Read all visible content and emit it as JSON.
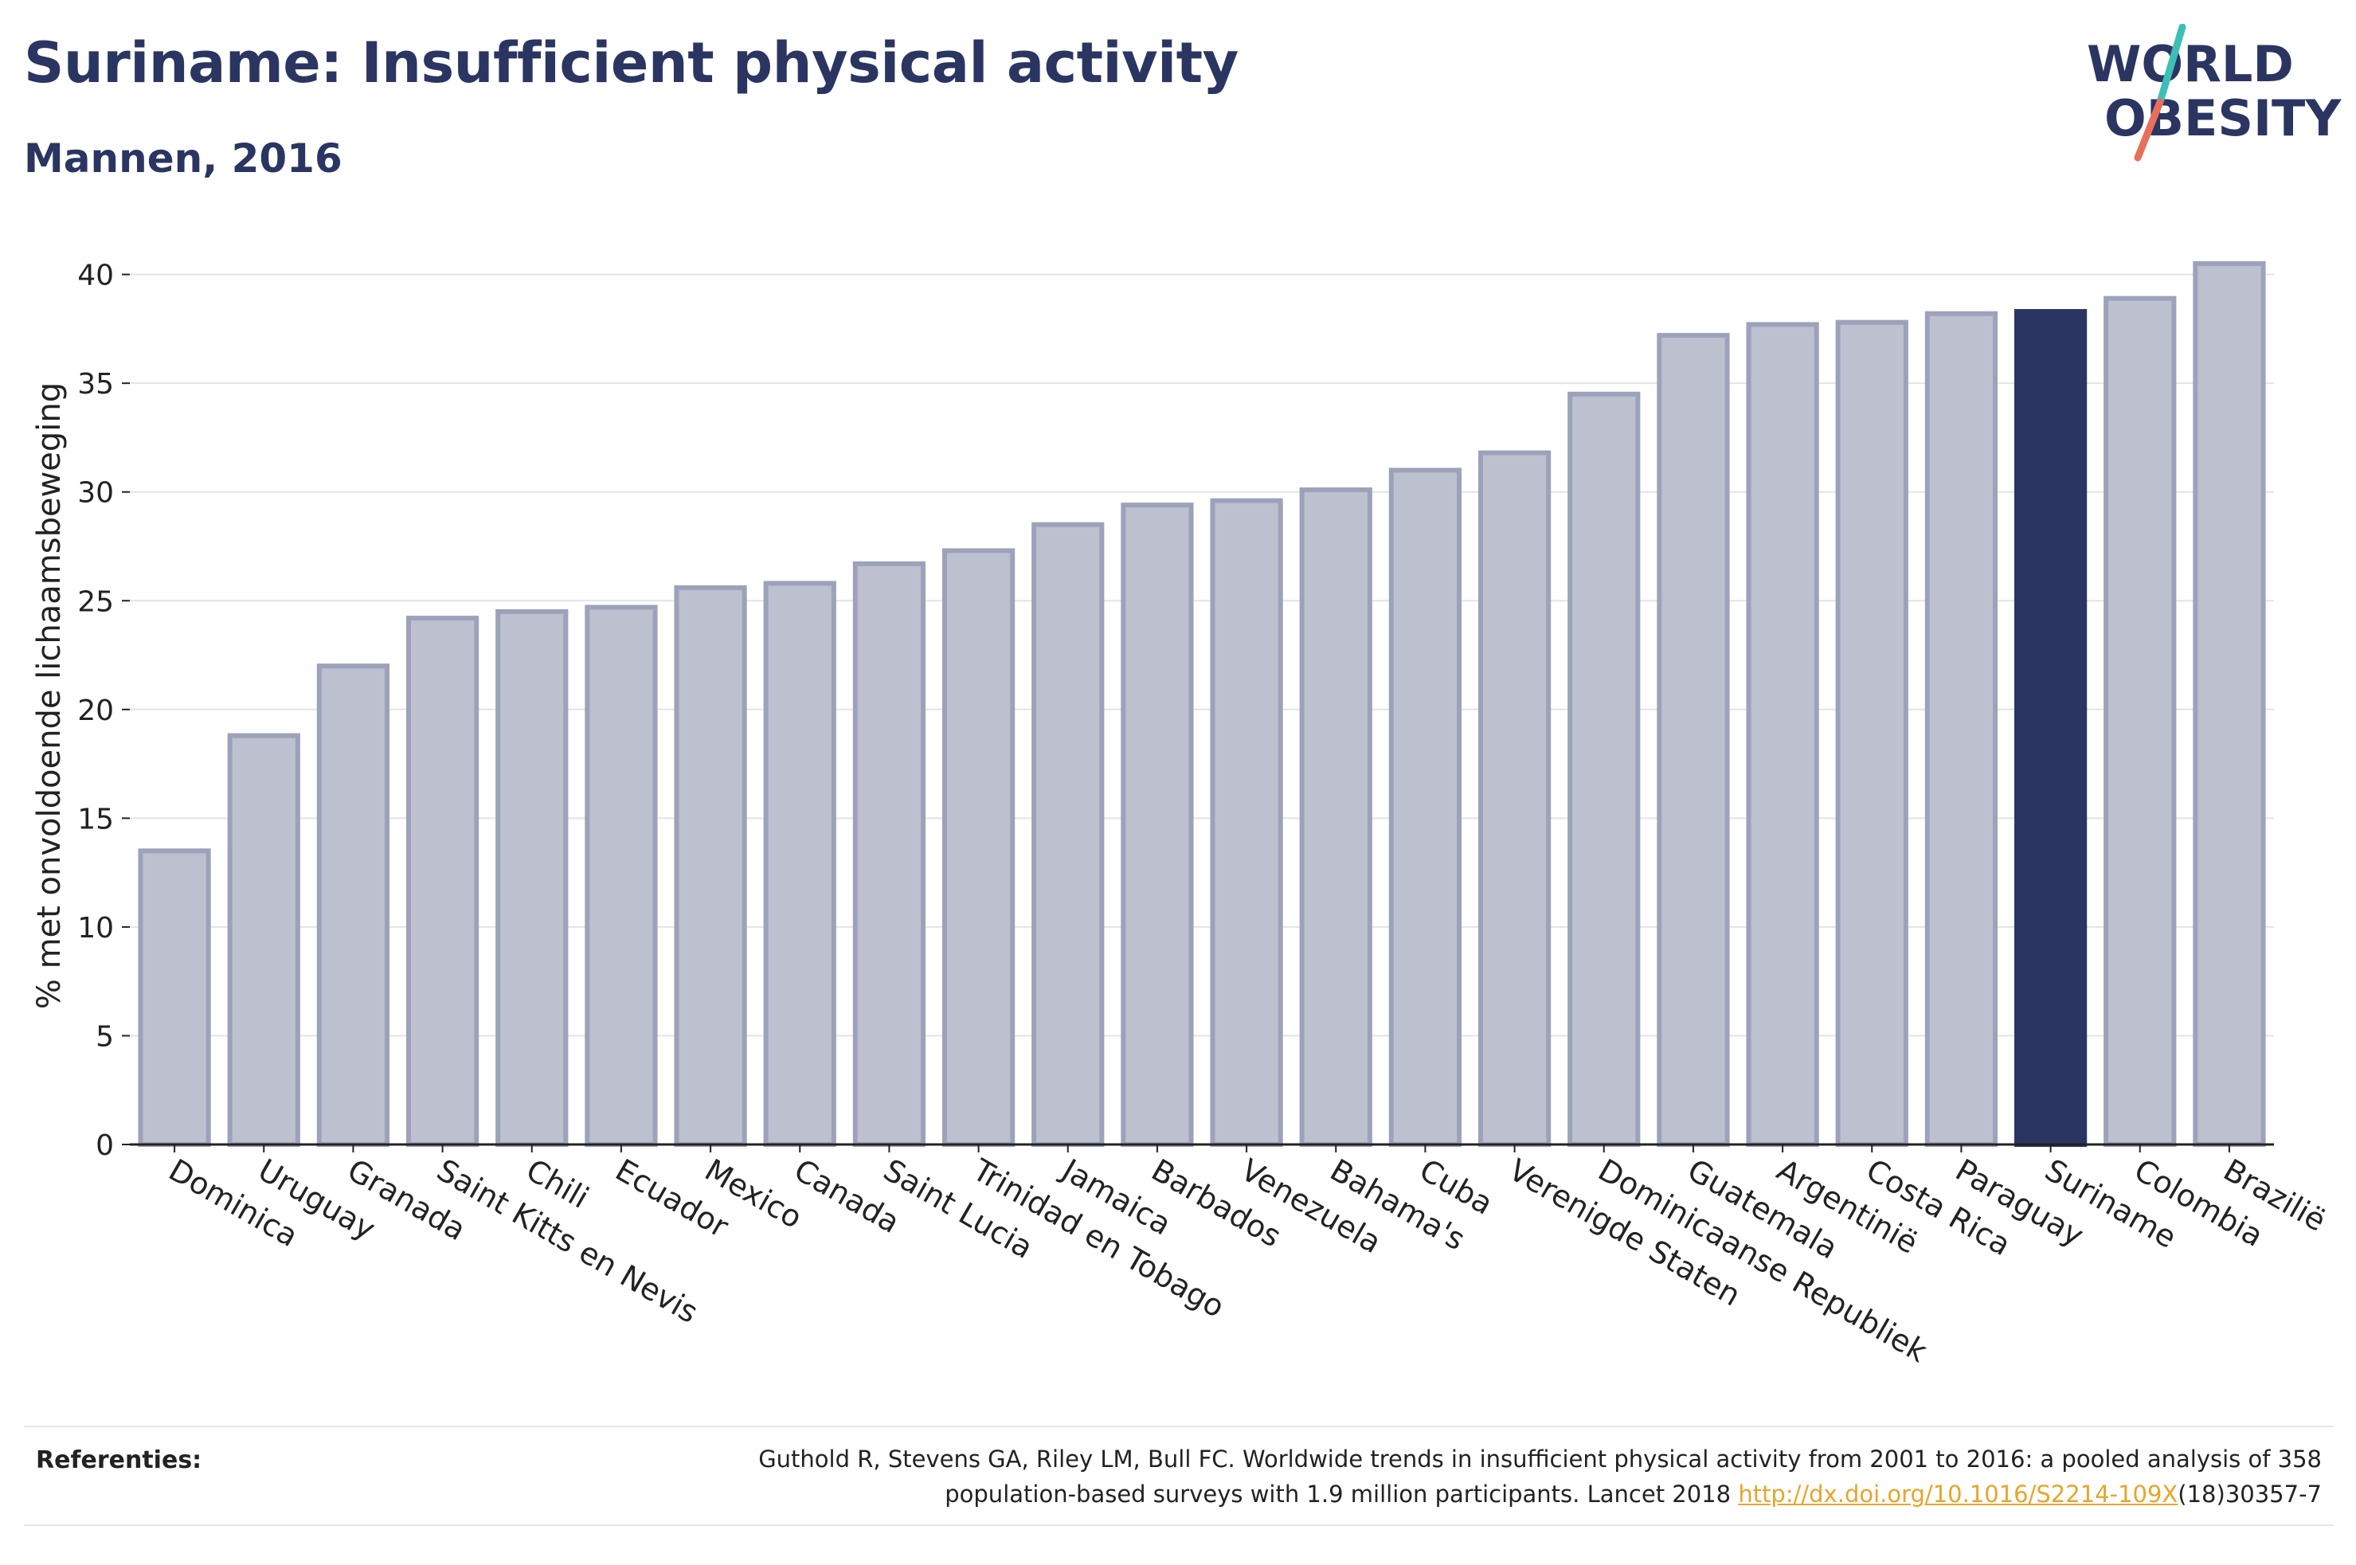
{
  "header": {
    "title": "Suriname: Insufficient physical activity",
    "subtitle": "Mannen, 2016"
  },
  "logo": {
    "line1": "WORLD",
    "line2": "OBESITY",
    "colors": {
      "text": "#2b3562",
      "slash_top": "#3dbfb8",
      "slash_bottom": "#e8705a"
    }
  },
  "chart_data": {
    "type": "bar",
    "title": "Suriname: Insufficient physical activity",
    "subtitle": "Mannen, 2016",
    "ylabel": "% met onvoldoende lichaamsbeweging",
    "xlabel": "",
    "ylim": [
      0,
      42
    ],
    "yticks": [
      0,
      5,
      10,
      15,
      20,
      25,
      30,
      35,
      40
    ],
    "grid": true,
    "highlight": "Suriname",
    "colors": {
      "bar": "#bdc0ce",
      "bar_edge": "#9da2bb",
      "highlight": "#2b3562",
      "grid": "#e4e4e4",
      "axis": "#222222"
    },
    "categories": [
      "Dominica",
      "Uruguay",
      "Granada",
      "Saint Kitts en Nevis",
      "Chili",
      "Ecuador",
      "Mexico",
      "Canada",
      "Saint Lucia",
      "Trinidad en Tobago",
      "Jamaica",
      "Barbados",
      "Venezuela",
      "Bahama's",
      "Cuba",
      "Verenigde Staten",
      "Dominicaanse Republiek",
      "Guatemala",
      "Argentinië",
      "Costa Rica",
      "Paraguay",
      "Suriname",
      "Colombia",
      "Brazilië"
    ],
    "values": [
      13.5,
      18.8,
      22.0,
      24.2,
      24.5,
      24.7,
      25.6,
      25.8,
      26.7,
      27.3,
      28.5,
      29.4,
      29.6,
      30.1,
      31.0,
      31.8,
      34.5,
      37.2,
      37.7,
      37.8,
      38.2,
      38.3,
      38.9,
      40.5
    ]
  },
  "references": {
    "label": "Referenties:",
    "text_line1": "Guthold R, Stevens GA, Riley LM, Bull FC. Worldwide trends in insufficient physical activity from 2001 to 2016: a pooled analysis of 358",
    "text_line2_prefix": "population-based surveys with 1.9 million participants. Lancet 2018 ",
    "link": "http://dx.doi.org/10.1016/S2214-109X",
    "text_line2_suffix": "(18)30357-7"
  }
}
